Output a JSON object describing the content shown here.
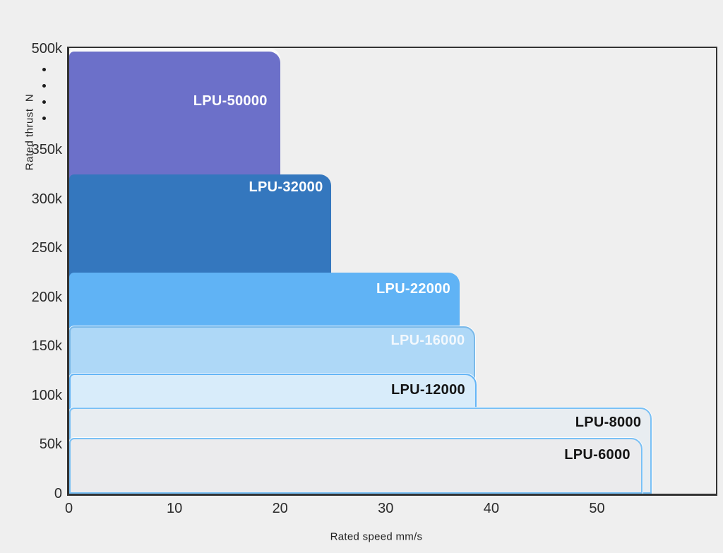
{
  "page": {
    "background_color": "#efefef",
    "frame_color": "#333333"
  },
  "chart_data": {
    "type": "bar",
    "subtype": "overlapping step bars (performance envelope: rated thrust vs rated speed)",
    "title": "",
    "xlabel": "Rated speed mm/s",
    "ylabel": "Rated thrust  N",
    "x_unit": "mm/s",
    "y_unit": "N",
    "xlim": [
      0,
      61
    ],
    "ylim_note": "y axis linear 0-350k, axis break (4 dots), then 500k at top",
    "grid": false,
    "legend": "none (labels drawn inside bars)",
    "x_ticks": [
      {
        "value": 0,
        "label": "0"
      },
      {
        "value": 10,
        "label": "10"
      },
      {
        "value": 20,
        "label": "20"
      },
      {
        "value": 30,
        "label": "30"
      },
      {
        "value": 40,
        "label": "40"
      },
      {
        "value": 50,
        "label": "50"
      }
    ],
    "y_ticks": [
      {
        "value_kN": 500,
        "label": "500k"
      },
      {
        "value_kN": 350,
        "label": "350k"
      },
      {
        "value_kN": 300,
        "label": "300k"
      },
      {
        "value_kN": 250,
        "label": "250k"
      },
      {
        "value_kN": 200,
        "label": "200k"
      },
      {
        "value_kN": 150,
        "label": "150k"
      },
      {
        "value_kN": 100,
        "label": "100k"
      },
      {
        "value_kN": 50,
        "label": "50k"
      },
      {
        "value_kN": 0,
        "label": "0"
      }
    ],
    "axis_break": {
      "axis": "y",
      "between_labels": [
        "350k",
        "500k"
      ],
      "dot_count": 4
    },
    "series": [
      {
        "model": "LPU-50000",
        "thrust_n": 500000,
        "speed_mm_s": 20.0,
        "fill": "#6c70c9",
        "border": null,
        "label_color": "#ffffff"
      },
      {
        "model": "LPU-32000",
        "thrust_n": 325000,
        "speed_mm_s": 24.8,
        "fill": "#3477be",
        "border": null,
        "label_color": "#ffffff"
      },
      {
        "model": "LPU-22000",
        "thrust_n": 225000,
        "speed_mm_s": 37.0,
        "fill": "#60b3f5",
        "border": null,
        "label_color": "#ffffff"
      },
      {
        "model": "LPU-16000",
        "thrust_n": 170000,
        "speed_mm_s": 38.5,
        "fill": "#aed8f7",
        "border": "#7ab9e9",
        "label_color": "#f2f8fd"
      },
      {
        "model": "LPU-12000",
        "thrust_n": 122000,
        "speed_mm_s": 38.6,
        "fill": "#d8ecfa",
        "border": "#64b5f6",
        "label_color": "#141414"
      },
      {
        "model": "LPU-8000",
        "thrust_n": 88000,
        "speed_mm_s": 55.2,
        "fill": "#e8edf1",
        "border": "#79c0f5",
        "label_color": "#141414"
      },
      {
        "model": "LPU-6000",
        "thrust_n": 57000,
        "speed_mm_s": 54.3,
        "fill": "#ebebed",
        "border": "#79c0f5",
        "label_color": "#141414"
      }
    ]
  }
}
